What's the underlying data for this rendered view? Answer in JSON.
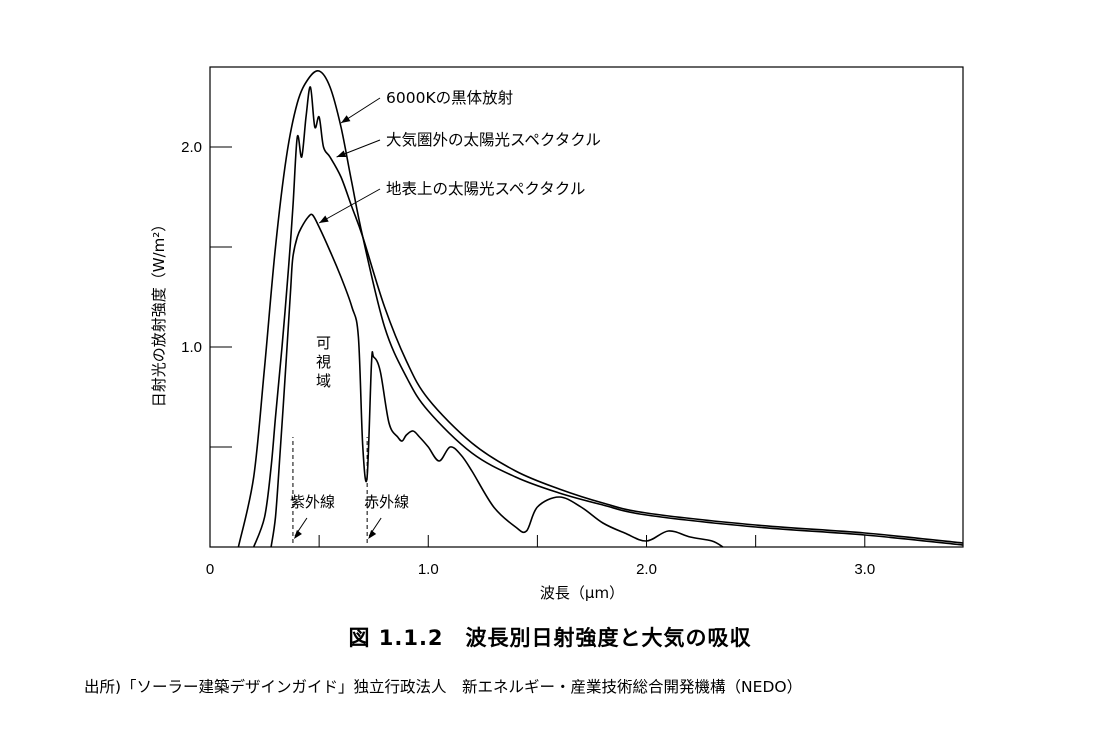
{
  "caption": "図 1.1.2　波長別日射強度と大気の吸収",
  "source": "出所)「ソーラー建築デザインガイド」独立行政法人　新エネルギー・産業技術総合開発機構（NEDO）",
  "chart_data": {
    "type": "line",
    "xlabel": "波長（μm）",
    "ylabel": "日射光の放射強度（W/m²）",
    "xlim": [
      0,
      3.45
    ],
    "ylim": [
      0,
      2.4
    ],
    "x_ticks": [
      0,
      1.0,
      2.0,
      3.0
    ],
    "x_tick_labels": [
      "0",
      "1.0",
      "2.0",
      "3.0"
    ],
    "x_minor_ticks": [
      0.5,
      1.5,
      2.5
    ],
    "y_ticks": [
      1.0,
      2.0
    ],
    "y_tick_labels": [
      "1.0",
      "2.0"
    ],
    "y_minor_ticks": [
      0.5,
      1.5
    ],
    "series": [
      {
        "name": "6000Kの黒体放射",
        "x": [
          0.13,
          0.2,
          0.25,
          0.3,
          0.35,
          0.4,
          0.45,
          0.5,
          0.55,
          0.6,
          0.65,
          0.7,
          0.8,
          0.9,
          1.0,
          1.2,
          1.4,
          1.6,
          1.8,
          2.0,
          2.5,
          3.0,
          3.45
        ],
        "y": [
          0.0,
          0.35,
          0.9,
          1.5,
          1.95,
          2.22,
          2.34,
          2.38,
          2.3,
          2.1,
          1.82,
          1.55,
          1.1,
          0.85,
          0.68,
          0.47,
          0.35,
          0.27,
          0.21,
          0.16,
          0.1,
          0.06,
          0.01
        ]
      },
      {
        "name": "大気圏外の太陽光スペクタクル",
        "x": [
          0.2,
          0.25,
          0.28,
          0.3,
          0.33,
          0.36,
          0.38,
          0.4,
          0.42,
          0.44,
          0.46,
          0.48,
          0.5,
          0.52,
          0.55,
          0.6,
          0.65,
          0.7,
          0.8,
          0.9,
          1.0,
          1.2,
          1.4,
          1.6,
          1.8,
          2.0,
          2.5,
          3.0,
          3.45
        ],
        "y": [
          0.0,
          0.15,
          0.4,
          0.65,
          1.0,
          1.4,
          1.7,
          2.05,
          1.95,
          2.15,
          2.3,
          2.1,
          2.15,
          2.0,
          1.95,
          1.85,
          1.7,
          1.55,
          1.2,
          0.93,
          0.74,
          0.52,
          0.38,
          0.29,
          0.22,
          0.17,
          0.11,
          0.07,
          0.02
        ]
      },
      {
        "name": "地表上の太陽光スペクタクル",
        "x": [
          0.28,
          0.3,
          0.32,
          0.35,
          0.37,
          0.38,
          0.4,
          0.42,
          0.45,
          0.47,
          0.5,
          0.55,
          0.6,
          0.65,
          0.68,
          0.7,
          0.72,
          0.74,
          0.75,
          0.78,
          0.82,
          0.86,
          0.88,
          0.9,
          0.93,
          0.96,
          1.0,
          1.05,
          1.1,
          1.15,
          1.2,
          1.3,
          1.4,
          1.45,
          1.5,
          1.6,
          1.7,
          1.8,
          1.9,
          2.0,
          2.1,
          2.2,
          2.3,
          2.35
        ],
        "y": [
          0.0,
          0.15,
          0.45,
          0.95,
          1.3,
          1.45,
          1.55,
          1.6,
          1.65,
          1.66,
          1.6,
          1.48,
          1.35,
          1.2,
          1.05,
          0.5,
          0.35,
          0.92,
          0.95,
          0.88,
          0.62,
          0.55,
          0.53,
          0.56,
          0.58,
          0.55,
          0.5,
          0.43,
          0.5,
          0.46,
          0.38,
          0.2,
          0.1,
          0.08,
          0.2,
          0.25,
          0.2,
          0.12,
          0.07,
          0.03,
          0.08,
          0.05,
          0.03,
          0.0
        ]
      }
    ],
    "annotations": [
      "6000Kの黒体放射",
      "大気圏外の太陽光スペクタクル",
      "地表上の太陽光スペクタクル"
    ],
    "regions": [
      {
        "label": "紫外線",
        "x": 0.38
      },
      {
        "label": "赤外線",
        "x": 0.72
      },
      {
        "label": "可視域"
      }
    ]
  }
}
